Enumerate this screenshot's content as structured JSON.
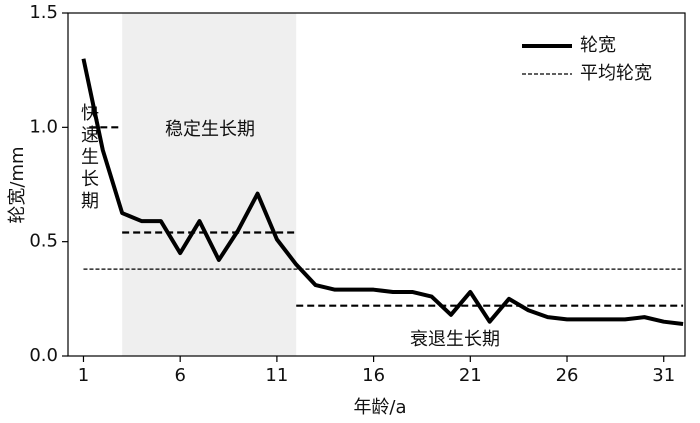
{
  "chart_data": {
    "type": "line",
    "x_label": "年龄/a",
    "y_label": "轮宽/mm",
    "x": [
      1,
      2,
      3,
      4,
      5,
      6,
      7,
      8,
      9,
      10,
      11,
      12,
      13,
      14,
      15,
      16,
      17,
      18,
      19,
      20,
      21,
      22,
      23,
      24,
      25,
      26,
      27,
      28,
      29,
      30,
      31,
      32
    ],
    "series": [
      {
        "name": "轮宽",
        "color": "#000000",
        "style": "solid",
        "values": [
          1.3,
          0.9,
          0.625,
          0.59,
          0.59,
          0.45,
          0.59,
          0.42,
          0.55,
          0.71,
          0.51,
          0.4,
          0.31,
          0.29,
          0.29,
          0.29,
          0.28,
          0.28,
          0.26,
          0.18,
          0.28,
          0.15,
          0.25,
          0.2,
          0.17,
          0.16,
          0.16,
          0.16,
          0.16,
          0.17,
          0.15,
          0.14
        ]
      },
      {
        "name": "平均轮宽",
        "color": "#000000",
        "style": "dashed",
        "value": 0.38
      }
    ],
    "stages": [
      {
        "label": "快速生长期",
        "x": [
          1.3,
          3
        ],
        "y": 1.0
      },
      {
        "label": "稳定生长期",
        "x": [
          3,
          12
        ],
        "y": 0.54
      },
      {
        "label": "衰退生长期",
        "x": [
          12,
          32
        ],
        "y": 0.22
      }
    ],
    "shaded_region": [
      3,
      12
    ],
    "shade_color": "#efefef",
    "xlim": [
      0.2,
      32.1
    ],
    "ylim": [
      0,
      1.5
    ],
    "xticks": [
      1,
      6,
      11,
      16,
      21,
      26,
      31
    ],
    "yticks": [
      {
        "value": 0,
        "label": "0.0"
      },
      0.5,
      {
        "value": 1,
        "label": "1.0"
      },
      1.5
    ],
    "legend": "upper right"
  }
}
